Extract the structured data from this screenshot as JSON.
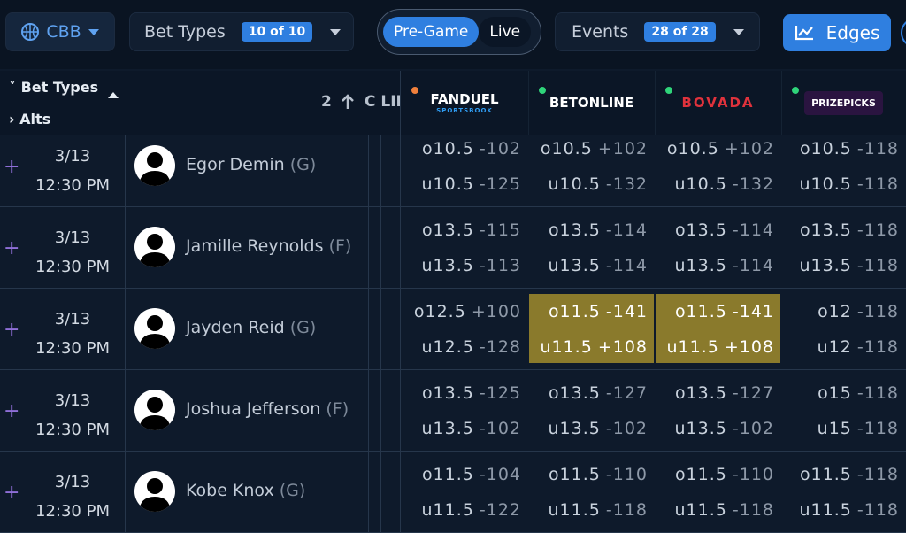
{
  "toolbar": {
    "sport": "CBB",
    "bet_types_label": "Bet Types",
    "bet_types_count": "10 of 10",
    "pregame": "Pre-Game",
    "live": "Live",
    "events_label": "Events",
    "events_count": "28 of 28",
    "edges": "Edges"
  },
  "header": {
    "bet_types": "Bet Types",
    "alts": "Alts",
    "sort_count": "2",
    "clipped_column": "C LII",
    "books": [
      {
        "name": "FANDUEL",
        "sub": "SPORTSBOOK"
      },
      {
        "name": "BETONLINE"
      },
      {
        "name": "BOVADA"
      },
      {
        "name": "PRIZEPICKS"
      }
    ]
  },
  "rows": [
    {
      "date": "3/13",
      "time": "12:30 PM",
      "player": "Egor Demin",
      "position": "(G)",
      "odds": [
        {
          "over": "o10.5",
          "over_price": "-102",
          "under": "u10.5",
          "under_price": "-125"
        },
        {
          "over": "o10.5",
          "over_price": "+102",
          "under": "u10.5",
          "under_price": "-132"
        },
        {
          "over": "o10.5",
          "over_price": "+102",
          "under": "u10.5",
          "under_price": "-132"
        },
        {
          "over": "o10.5",
          "over_price": "-118",
          "under": "u10.5",
          "under_price": "-118"
        }
      ]
    },
    {
      "date": "3/13",
      "time": "12:30 PM",
      "player": "Jamille Reynolds",
      "position": "(F)",
      "odds": [
        {
          "over": "o13.5",
          "over_price": "-115",
          "under": "u13.5",
          "under_price": "-113"
        },
        {
          "over": "o13.5",
          "over_price": "-114",
          "under": "u13.5",
          "under_price": "-114"
        },
        {
          "over": "o13.5",
          "over_price": "-114",
          "under": "u13.5",
          "under_price": "-114"
        },
        {
          "over": "o13.5",
          "over_price": "-118",
          "under": "u13.5",
          "under_price": "-118"
        }
      ]
    },
    {
      "date": "3/13",
      "time": "12:30 PM",
      "player": "Jayden Reid",
      "position": "(G)",
      "odds": [
        {
          "over": "o12.5",
          "over_price": "+100",
          "under": "u12.5",
          "under_price": "-128"
        },
        {
          "over": "o11.5",
          "over_price": "-141",
          "under": "u11.5",
          "under_price": "+108",
          "highlight": true
        },
        {
          "over": "o11.5",
          "over_price": "-141",
          "under": "u11.5",
          "under_price": "+108",
          "highlight": true
        },
        {
          "over": "o12",
          "over_price": "-118",
          "under": "u12",
          "under_price": "-118"
        }
      ]
    },
    {
      "date": "3/13",
      "time": "12:30 PM",
      "player": "Joshua Jefferson",
      "position": "(F)",
      "odds": [
        {
          "over": "o13.5",
          "over_price": "-125",
          "under": "u13.5",
          "under_price": "-102"
        },
        {
          "over": "o13.5",
          "over_price": "-127",
          "under": "u13.5",
          "under_price": "-102"
        },
        {
          "over": "o13.5",
          "over_price": "-127",
          "under": "u13.5",
          "under_price": "-102"
        },
        {
          "over": "o15",
          "over_price": "-118",
          "under": "u15",
          "under_price": "-118"
        }
      ]
    },
    {
      "date": "3/13",
      "time": "12:30 PM",
      "player": "Kobe Knox",
      "position": "(G)",
      "odds": [
        {
          "over": "o11.5",
          "over_price": "-104",
          "under": "u11.5",
          "under_price": "-122"
        },
        {
          "over": "o11.5",
          "over_price": "-110",
          "under": "u11.5",
          "under_price": "-118"
        },
        {
          "over": "o11.5",
          "over_price": "-110",
          "under": "u11.5",
          "under_price": "-118"
        },
        {
          "over": "o11.5",
          "over_price": "-118",
          "under": "u11.5",
          "under_price": "-118"
        }
      ]
    }
  ]
}
